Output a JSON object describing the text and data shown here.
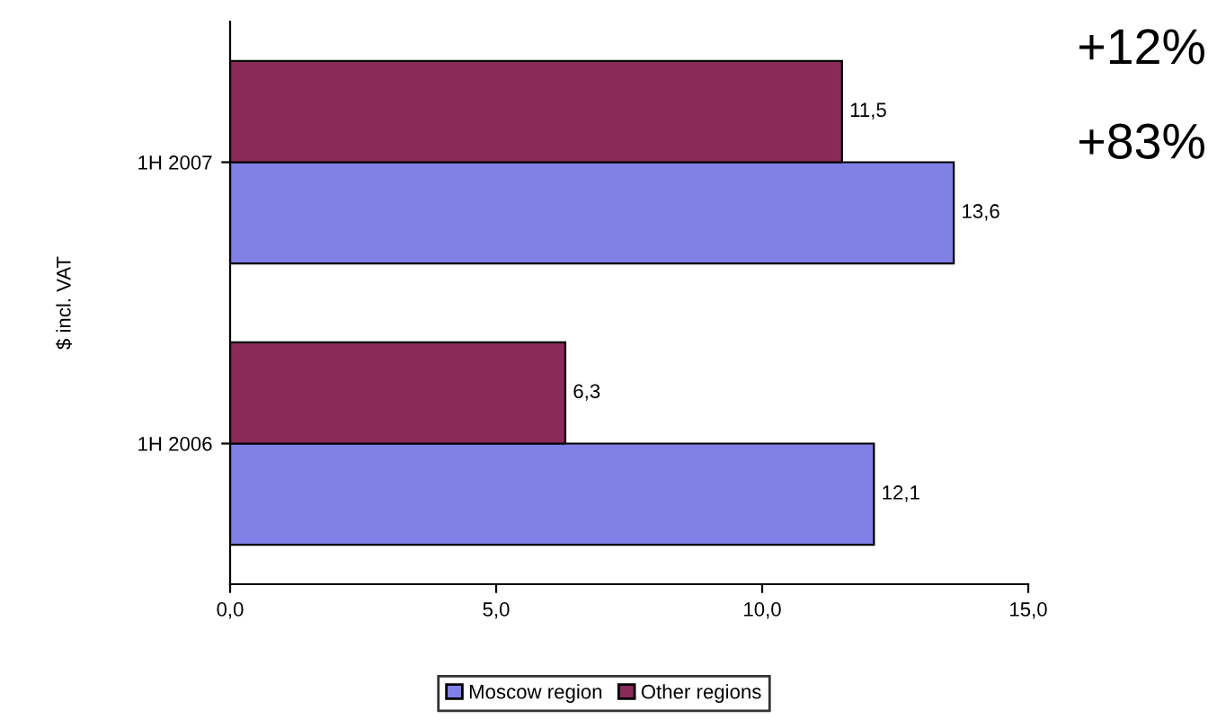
{
  "chart_data": {
    "type": "bar",
    "orientation": "horizontal",
    "ylabel": "$ incl. VAT",
    "categories": [
      "1H 2007",
      "1H 2006"
    ],
    "series": [
      {
        "name": "Moscow region",
        "color": "#8080e6",
        "values": [
          13.6,
          12.1
        ],
        "value_labels": [
          "13,6",
          "12,1"
        ]
      },
      {
        "name": "Other regions",
        "color": "#8a2a58",
        "values": [
          11.5,
          6.3
        ],
        "value_labels": [
          "11,5",
          "6,3"
        ]
      }
    ],
    "xlim": [
      0,
      15
    ],
    "xticks": [
      {
        "value": 0,
        "label": "0,0"
      },
      {
        "value": 5,
        "label": "5,0"
      },
      {
        "value": 10,
        "label": "10,0"
      },
      {
        "value": 15,
        "label": "15,0"
      }
    ],
    "annotations": [
      "+12%",
      "+83%"
    ],
    "grid": false,
    "legend": "bottom"
  }
}
